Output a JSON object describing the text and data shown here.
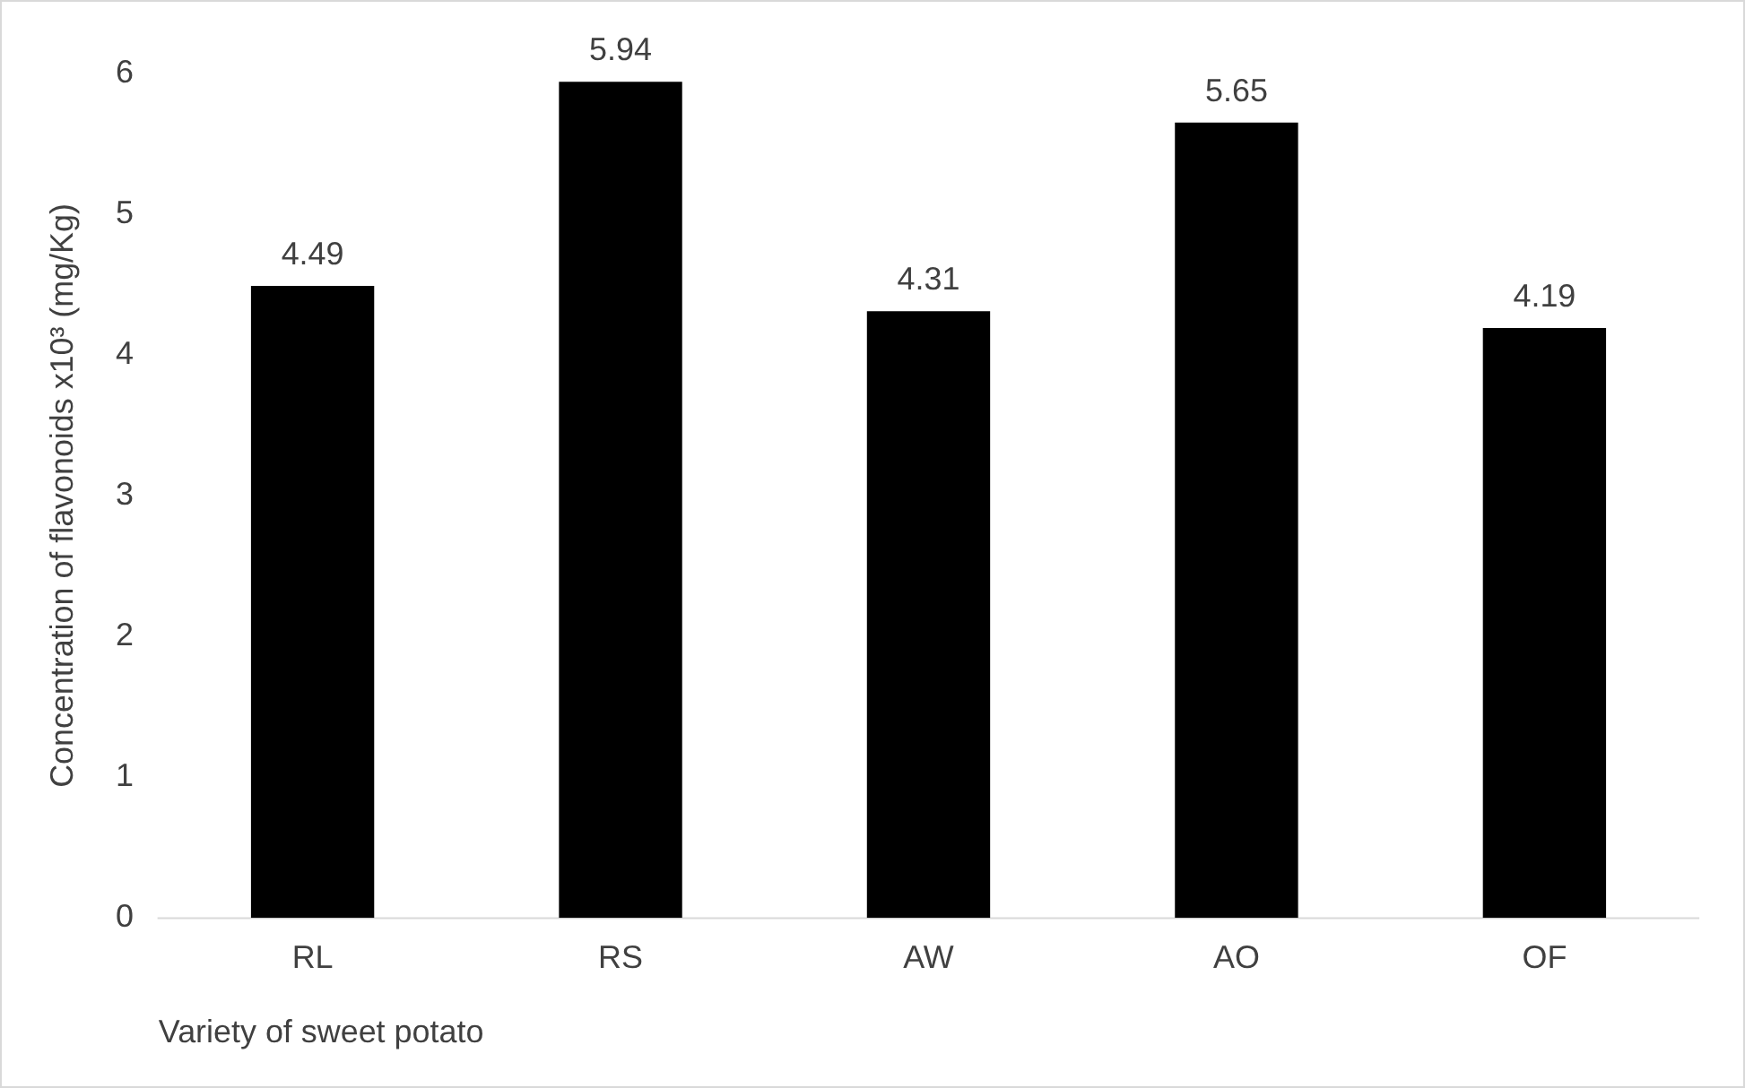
{
  "chart_data": {
    "type": "bar",
    "xlabel": "Variety of sweet potato",
    "ylabel": "Concentration of flavonoids x10³ (mg/Kg)",
    "categories": [
      "RL",
      "RS",
      "AW",
      "AO",
      "OF"
    ],
    "values": [
      4.49,
      5.94,
      4.31,
      5.65,
      4.19
    ],
    "color": "#000000",
    "ylim": [
      0,
      6
    ],
    "yticks": [
      0,
      1,
      2,
      3,
      4,
      5,
      6
    ],
    "grid": false,
    "legend": false,
    "data_labels": true
  }
}
